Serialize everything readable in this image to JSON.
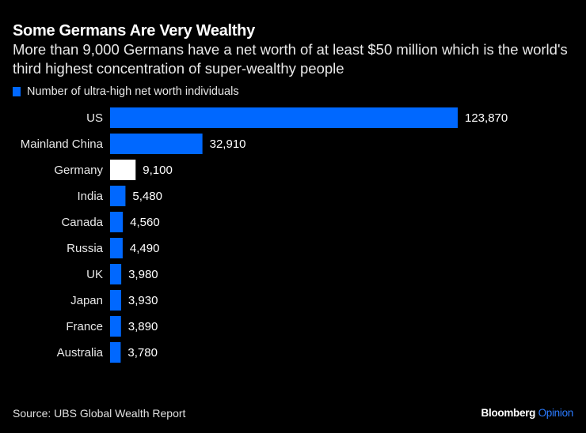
{
  "chart_data": {
    "type": "bar",
    "orientation": "horizontal",
    "title": "Some Germans Are Very Wealthy",
    "subtitle": "More than 9,000 Germans have a net worth of at least $50 million which is the world's third highest concentration of super-wealthy people",
    "legend": [
      {
        "label": "Number of ultra-high net worth individuals",
        "color": "#0068ff"
      }
    ],
    "legend_position": "top-left",
    "categories": [
      "US",
      "Mainland China",
      "Germany",
      "India",
      "Canada",
      "Russia",
      "UK",
      "Japan",
      "France",
      "Australia"
    ],
    "values": [
      123870,
      32910,
      9100,
      5480,
      4560,
      4490,
      3980,
      3930,
      3890,
      3780
    ],
    "value_labels": [
      "123,870",
      "32,910",
      "9,100",
      "5,480",
      "4,560",
      "4,490",
      "3,980",
      "3,930",
      "3,890",
      "3,780"
    ],
    "highlight": {
      "category": "Germany",
      "color": "#ffffff"
    },
    "bar_color": "#0068ff",
    "xlim": [
      0,
      123870
    ],
    "grid": false,
    "xlabel": "",
    "ylabel": ""
  },
  "footer": {
    "source": "Source: UBS Global Wealth Report",
    "brand": "Bloomberg",
    "brand_suffix": "Opinion"
  }
}
